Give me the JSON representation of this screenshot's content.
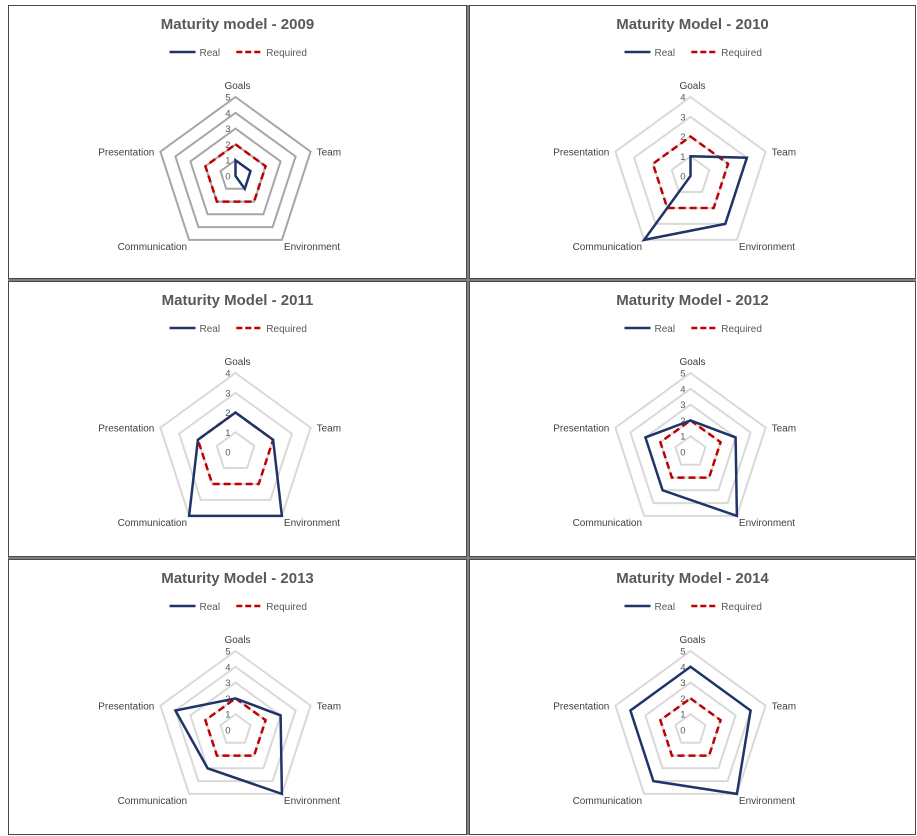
{
  "chart_data": [
    {
      "type": "radar",
      "title": "Maturity model - 2009",
      "categories": [
        "Goals",
        "Team",
        "Environment",
        "Communication",
        "Presentation"
      ],
      "rlim": [
        0,
        5
      ],
      "tick_labels": [
        "0",
        "1",
        "2",
        "3",
        "4",
        "5"
      ],
      "grid_color": "#a6a6a6",
      "legend_position": "top",
      "series": [
        {
          "name": "Real",
          "values": [
            1,
            1,
            1,
            0,
            0
          ],
          "color": "#1f3468",
          "style": "solid"
        },
        {
          "name": "Required",
          "values": [
            2,
            2,
            2,
            2,
            2
          ],
          "color": "#c00000",
          "style": "dashed"
        }
      ]
    },
    {
      "type": "radar",
      "title": "Maturity Model - 2010",
      "categories": [
        "Goals",
        "Team",
        "Environment",
        "Communication",
        "Presentation"
      ],
      "rlim": [
        0,
        4
      ],
      "tick_labels": [
        "0",
        "1",
        "2",
        "3",
        "4"
      ],
      "grid_color": "#d9d9d9",
      "legend_position": "top",
      "series": [
        {
          "name": "Real",
          "values": [
            1,
            3,
            3,
            4,
            0
          ],
          "color": "#1f3468",
          "style": "solid"
        },
        {
          "name": "Required",
          "values": [
            2,
            2,
            2,
            2,
            2
          ],
          "color": "#c00000",
          "style": "dashed"
        }
      ]
    },
    {
      "type": "radar",
      "title": "Maturity Model - 2011",
      "categories": [
        "Goals",
        "Team",
        "Environment",
        "Communication",
        "Presentation"
      ],
      "rlim": [
        0,
        4
      ],
      "tick_labels": [
        "0",
        "1",
        "2",
        "3",
        "4"
      ],
      "grid_color": "#d9d9d9",
      "legend_position": "top",
      "series": [
        {
          "name": "Real",
          "values": [
            2,
            2,
            4,
            4,
            2
          ],
          "color": "#1f3468",
          "style": "solid"
        },
        {
          "name": "Required",
          "values": [
            2,
            2,
            2,
            2,
            2
          ],
          "color": "#c00000",
          "style": "dashed"
        }
      ]
    },
    {
      "type": "radar",
      "title": "Maturity Model - 2012",
      "categories": [
        "Goals",
        "Team",
        "Environment",
        "Communication",
        "Presentation"
      ],
      "rlim": [
        0,
        5
      ],
      "tick_labels": [
        "0",
        "1",
        "2",
        "3",
        "4",
        "5"
      ],
      "grid_color": "#d9d9d9",
      "legend_position": "top",
      "series": [
        {
          "name": "Real",
          "values": [
            2,
            3,
            5,
            3,
            3
          ],
          "color": "#1f3468",
          "style": "solid"
        },
        {
          "name": "Required",
          "values": [
            2,
            2,
            2,
            2,
            2
          ],
          "color": "#c00000",
          "style": "dashed"
        }
      ]
    },
    {
      "type": "radar",
      "title": "Maturity Model - 2013",
      "categories": [
        "Goals",
        "Team",
        "Environment",
        "Communication",
        "Presentation"
      ],
      "rlim": [
        0,
        5
      ],
      "tick_labels": [
        "0",
        "1",
        "2",
        "3",
        "4",
        "5"
      ],
      "grid_color": "#d9d9d9",
      "legend_position": "top",
      "series": [
        {
          "name": "Real",
          "values": [
            2,
            3,
            5,
            3,
            4
          ],
          "color": "#1f3468",
          "style": "solid"
        },
        {
          "name": "Required",
          "values": [
            2,
            2,
            2,
            2,
            2
          ],
          "color": "#c00000",
          "style": "dashed"
        }
      ]
    },
    {
      "type": "radar",
      "title": "Maturity Model - 2014",
      "categories": [
        "Goals",
        "Team",
        "Environment",
        "Communication",
        "Presentation"
      ],
      "rlim": [
        0,
        5
      ],
      "tick_labels": [
        "0",
        "1",
        "2",
        "3",
        "4",
        "5"
      ],
      "grid_color": "#d9d9d9",
      "legend_position": "top",
      "series": [
        {
          "name": "Real",
          "values": [
            4,
            4,
            5,
            4,
            4
          ],
          "color": "#1f3468",
          "style": "solid"
        },
        {
          "name": "Required",
          "values": [
            2,
            2,
            2,
            2,
            2
          ],
          "color": "#c00000",
          "style": "dashed"
        }
      ]
    }
  ]
}
